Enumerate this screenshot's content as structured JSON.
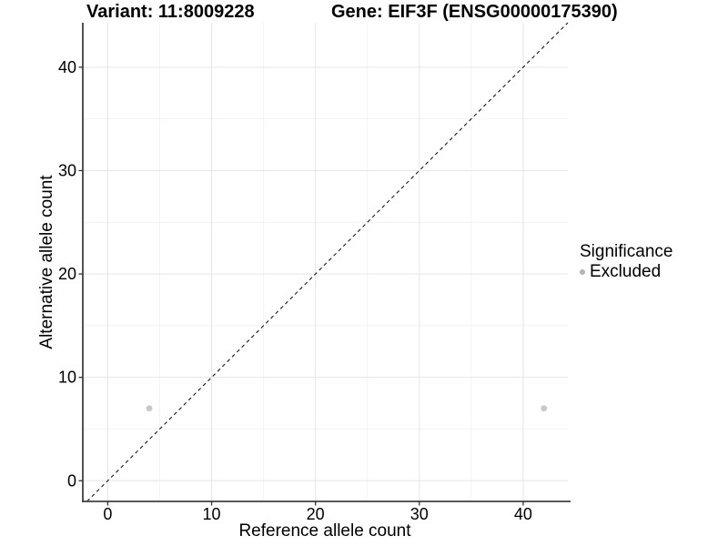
{
  "chart_data": {
    "type": "scatter",
    "title_left": "Variant: 11:8009228",
    "title_right": "Gene: EIF3F (ENSG00000175390)",
    "xlabel": "Reference allele count",
    "ylabel": "Alternative allele count",
    "x_ticks": [
      0,
      10,
      20,
      30,
      40
    ],
    "y_ticks": [
      0,
      10,
      20,
      30,
      40
    ],
    "x_minor_ticks": [
      5,
      15,
      25,
      35
    ],
    "y_minor_ticks": [
      5,
      15,
      25,
      35
    ],
    "xlim": [
      -2.4,
      44.3
    ],
    "ylim": [
      -2.0,
      44.3
    ],
    "grid": "major+minor",
    "series": [
      {
        "name": "Excluded",
        "points": [
          {
            "x": 4,
            "y": 7
          },
          {
            "x": 42,
            "y": 7
          }
        ]
      }
    ],
    "identity_line": {
      "style": "dashed",
      "from": [
        -2.0,
        -2.0
      ],
      "to": [
        44.3,
        44.3
      ]
    },
    "legend": {
      "title": "Significance",
      "position": "right",
      "items": [
        {
          "label": "Excluded",
          "color": "#b3b3b3"
        }
      ]
    },
    "colors": {
      "point": "#c8c8c8",
      "grid_major": "#e6e6e6",
      "grid_minor": "#f2f2f2",
      "axis_line": "#404040",
      "tick_mark": "#333333",
      "tick_label": "#000000",
      "dashed_line": "#1a1a1a"
    }
  }
}
